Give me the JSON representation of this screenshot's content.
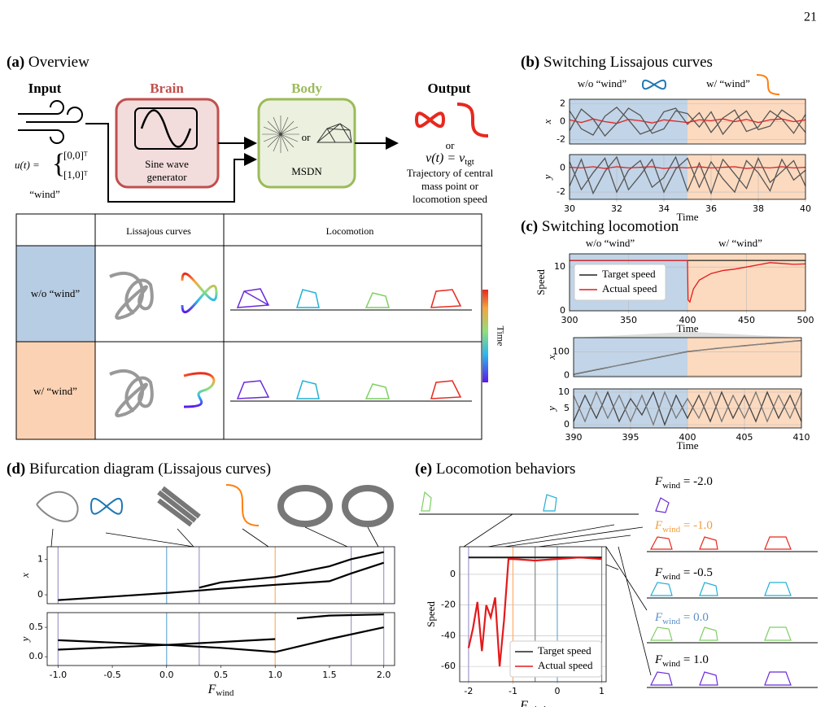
{
  "page_number": "21",
  "panels": {
    "a": {
      "label": "(a)",
      "title": "Overview",
      "input": "Input",
      "brain": "Brain",
      "brain_box": [
        "Sine wave",
        "generator"
      ],
      "body": "Body",
      "body_or": "or",
      "body_box": "MSDN",
      "output": "Output",
      "output_or": "or",
      "formula_v": "v(t) = v",
      "formula_v_sub": "tgt",
      "output_desc": [
        "Trajectory of central",
        "mass point or",
        "locomotion speed"
      ],
      "input_u": "u(t) =",
      "input_vec": [
        "[0,0]ᵀ",
        "[1,0]ᵀ"
      ],
      "wind_label": "“wind”",
      "table": {
        "headers": [
          "Lissajous curves",
          "Locomotion"
        ],
        "rows": [
          "w/o “wind”",
          "w/ “wind”"
        ],
        "colorbar": "Time"
      }
    },
    "b": {
      "label": "(b)",
      "title": "Switching Lissajous curves",
      "legend": [
        "w/o “wind”",
        "w/ “wind”"
      ]
    },
    "c": {
      "label": "(c)",
      "title": "Switching locomotion",
      "regions": [
        "w/o “wind”",
        "w/ “wind”"
      ]
    },
    "d": {
      "label": "(d)",
      "title": "Bifurcation diagram (Lissajous curves)"
    },
    "e": {
      "label": "(e)",
      "title": "Locomotion behaviors",
      "f_labels": [
        {
          "main": "F",
          "sub": "wind",
          "value": " = -2.0",
          "color": "#000000"
        },
        {
          "main": "F",
          "sub": "wind",
          "value": " = -1.0",
          "color": "#f39c3c"
        },
        {
          "main": "F",
          "sub": "wind",
          "value": " = -0.5",
          "color": "#000000"
        },
        {
          "main": "F",
          "sub": "wind",
          "value": " = 0.0",
          "color": "#5b8fc7"
        },
        {
          "main": "F",
          "sub": "wind",
          "value": " = 1.0",
          "color": "#000000"
        }
      ]
    }
  },
  "chart_data": [
    {
      "type": "line",
      "ylabel": "x",
      "xlim": [
        30,
        40
      ],
      "ylim": [
        -2.5,
        2.5
      ],
      "yticks": [
        -2,
        0,
        2
      ],
      "grid": true,
      "regions": [
        {
          "from": 30,
          "to": 35,
          "color": "#b7cde3"
        },
        {
          "from": 35,
          "to": 40,
          "color": "#fbd3b4"
        }
      ],
      "x": [
        30,
        30.5,
        31,
        31.5,
        32,
        32.5,
        33,
        33.5,
        34,
        34.5,
        35,
        35.5,
        36,
        36.5,
        37,
        37.5,
        38,
        38.5,
        39,
        39.5,
        40
      ],
      "series": [
        {
          "color": "#555555",
          "values": [
            1.2,
            -0.8,
            -1.5,
            0.6,
            1.6,
            0.2,
            -1.4,
            -0.9,
            1.1,
            1.5,
            -0.3,
            1.0,
            -1.2,
            0.4,
            1.3,
            -1.1,
            -0.6,
            1.2,
            0.3,
            -1.3,
            0.8
          ]
        },
        {
          "color": "#555555",
          "values": [
            -1.0,
            1.4,
            0.3,
            -1.6,
            -0.2,
            1.5,
            0.7,
            -1.3,
            -0.8,
            1.2,
            0.9,
            -0.6,
            1.1,
            -1.4,
            0.2,
            1.2,
            -0.9,
            -0.5,
            1.3,
            0.4,
            -1.2
          ]
        },
        {
          "color": "#d62728",
          "values": [
            0.2,
            -0.1,
            0.3,
            0.0,
            -0.2,
            0.25,
            0.1,
            -0.15,
            0.2,
            0.05,
            -0.1,
            0.2,
            0.1,
            0.3,
            0.0,
            0.25,
            -0.1,
            0.2,
            0.3,
            0.0,
            0.2
          ]
        }
      ]
    },
    {
      "type": "line",
      "ylabel": "y",
      "xlabel": "Time",
      "xlim": [
        30,
        40
      ],
      "ylim": [
        -2.6,
        1.1
      ],
      "xticks": [
        30,
        32,
        34,
        36,
        38,
        40
      ],
      "yticks": [
        -2,
        0
      ],
      "grid": true,
      "regions": [
        {
          "from": 30,
          "to": 35,
          "color": "#b7cde3"
        },
        {
          "from": 35,
          "to": 40,
          "color": "#fbd3b4"
        }
      ],
      "x": [
        30,
        30.5,
        31,
        31.5,
        32,
        32.5,
        33,
        33.5,
        34,
        34.5,
        35,
        35.5,
        36,
        36.5,
        37,
        37.5,
        38,
        38.5,
        39,
        39.5,
        40
      ],
      "series": [
        {
          "color": "#555555",
          "values": [
            0.5,
            -1.8,
            -0.4,
            0.8,
            -2.0,
            -0.2,
            0.6,
            -1.6,
            -0.8,
            0.9,
            -1.9,
            0.4,
            -2.1,
            0.7,
            -0.5,
            -1.7,
            0.8,
            -1.2,
            -0.3,
            0.6,
            -1.5
          ]
        },
        {
          "color": "#555555",
          "values": [
            -1.5,
            0.7,
            -2.1,
            -0.3,
            0.9,
            -1.8,
            -0.6,
            0.7,
            -2.0,
            -0.1,
            0.8,
            -1.6,
            0.5,
            -0.9,
            -2.0,
            0.6,
            -0.4,
            -1.9,
            0.7,
            -1.0,
            -0.2
          ]
        },
        {
          "color": "#d62728",
          "values": [
            0.05,
            0.0,
            0.1,
            -0.05,
            0.1,
            0.0,
            0.05,
            0.1,
            -0.05,
            0.05,
            0.0,
            0.1,
            0.0,
            0.05,
            0.1,
            -0.05,
            0.05,
            0.0,
            0.1,
            0.0,
            0.05
          ]
        }
      ]
    },
    {
      "type": "line",
      "ylabel": "Speed",
      "xlabel": "Time",
      "xlim": [
        300,
        500
      ],
      "ylim": [
        0,
        13
      ],
      "xticks": [
        300,
        350,
        400,
        450,
        500
      ],
      "yticks": [
        0,
        10
      ],
      "grid": true,
      "legend": "center left",
      "regions": [
        {
          "from": 300,
          "to": 400,
          "color": "#b7cde3"
        },
        {
          "from": 400,
          "to": 500,
          "color": "#fbd3b4"
        }
      ],
      "x": [
        300,
        400,
        400.5,
        402,
        405,
        410,
        420,
        430,
        440,
        450,
        460,
        470,
        480,
        490,
        500
      ],
      "series": [
        {
          "name": "Target speed",
          "color": "#222222",
          "values": [
            11.5,
            11.5,
            11.5,
            11.5,
            11.5,
            11.5,
            11.5,
            11.5,
            11.5,
            11.5,
            11.5,
            11.5,
            11.5,
            11.5,
            11.5
          ]
        },
        {
          "name": "Actual speed",
          "color": "#e31a1c",
          "values": [
            11.5,
            11.5,
            2.5,
            2.0,
            5,
            7,
            8.5,
            9.2,
            9.5,
            10,
            10.5,
            11,
            10.8,
            10.6,
            10.7
          ]
        }
      ]
    },
    {
      "type": "line",
      "ylabel": "x",
      "xlim": [
        390,
        410
      ],
      "ylim": [
        -5,
        160
      ],
      "yticks": [
        0,
        100
      ],
      "grid": true,
      "regions": [
        {
          "from": 390,
          "to": 400,
          "color": "#b7cde3"
        },
        {
          "from": 400,
          "to": 410,
          "color": "#fbd3b4"
        }
      ],
      "x": [
        390,
        392.5,
        395,
        397.5,
        400,
        402.5,
        405,
        407.5,
        410
      ],
      "series": [
        {
          "color": "#222222",
          "values": [
            5,
            29,
            53,
            77,
            101,
            114,
            126,
            137,
            148
          ]
        },
        {
          "color": "#888888",
          "values": [
            6,
            30,
            52,
            78,
            100,
            115,
            125,
            138,
            147
          ]
        }
      ]
    },
    {
      "type": "line",
      "ylabel": "y",
      "xlabel": "Time",
      "xlim": [
        390,
        410
      ],
      "ylim": [
        -1,
        11
      ],
      "xticks": [
        390,
        395,
        400,
        405,
        410
      ],
      "yticks": [
        0,
        5,
        10
      ],
      "grid": true,
      "regions": [
        {
          "from": 390,
          "to": 400,
          "color": "#b7cde3"
        },
        {
          "from": 400,
          "to": 410,
          "color": "#fbd3b4"
        }
      ],
      "x": [
        390,
        391,
        392,
        393,
        394,
        395,
        396,
        397,
        398,
        399,
        400,
        401,
        402,
        403,
        404,
        405,
        406,
        407,
        408,
        409,
        410
      ],
      "series": [
        {
          "color": "#444444",
          "values": [
            1,
            9,
            2,
            10,
            1,
            8,
            3,
            10,
            0,
            9,
            2,
            9,
            1,
            10,
            2,
            9,
            1,
            10,
            2,
            9,
            1
          ]
        },
        {
          "color": "#777777",
          "values": [
            9,
            1,
            10,
            2,
            9,
            1,
            9,
            0,
            10,
            2,
            8,
            2,
            10,
            1,
            9,
            2,
            10,
            1,
            9,
            2,
            10
          ]
        }
      ]
    },
    {
      "type": "line",
      "ylabel": "x",
      "xlim": [
        -1.1,
        2.1
      ],
      "ylim": [
        -0.25,
        1.35
      ],
      "yticks": [
        0,
        1
      ],
      "grid": false,
      "vlines": [
        {
          "value": -1,
          "color": "#9e9ac8"
        },
        {
          "value": 0,
          "color": "#6baed6"
        },
        {
          "value": 0.3,
          "color": "#9e9ac8"
        },
        {
          "value": 1,
          "color": "#fdae6b"
        },
        {
          "value": 1.7,
          "color": "#9e9ac8"
        },
        {
          "value": 2,
          "color": "#9e9ac8"
        }
      ],
      "series": [
        {
          "color": "#000000",
          "x": [
            -1,
            -0.5,
            0,
            0.3,
            0.5,
            1,
            1.5,
            1.7,
            2
          ],
          "values": [
            -0.15,
            -0.05,
            0.05,
            0.12,
            0.17,
            0.28,
            0.38,
            0.6,
            0.9
          ]
        },
        {
          "color": "#000000",
          "x": [
            0.3,
            0.5,
            1,
            1.5,
            1.7,
            2
          ],
          "values": [
            0.2,
            0.35,
            0.5,
            0.8,
            1.0,
            1.2
          ]
        }
      ]
    },
    {
      "type": "line",
      "ylabel": "y",
      "xlabel": "F",
      "xlabel_sub": "wind",
      "xlim": [
        -1.1,
        2.1
      ],
      "ylim": [
        -0.15,
        0.75
      ],
      "xticks": [
        {
          "value": -1,
          "label": "-1.0"
        },
        -0.5,
        {
          "value": 0,
          "label": "0.0"
        },
        0.5,
        {
          "value": 1,
          "label": "1.0"
        },
        1.5,
        {
          "value": 2,
          "label": "2.0"
        }
      ],
      "yticks": [
        {
          "value": 0,
          "label": "0.0"
        },
        0.5
      ],
      "grid": false,
      "vlines": [
        {
          "value": -1,
          "color": "#9e9ac8"
        },
        {
          "value": 0,
          "color": "#6baed6"
        },
        {
          "value": 0.3,
          "color": "#9e9ac8"
        },
        {
          "value": 1,
          "color": "#fdae6b"
        },
        {
          "value": 1.7,
          "color": "#9e9ac8"
        },
        {
          "value": 2,
          "color": "#9e9ac8"
        }
      ],
      "series": [
        {
          "color": "#000000",
          "x": [
            -1,
            0,
            0.5,
            1,
            1.5,
            2
          ],
          "values": [
            0.28,
            0.2,
            0.15,
            0.08,
            0.3,
            0.5
          ]
        },
        {
          "color": "#000000",
          "x": [
            -1,
            0,
            0.5,
            1
          ],
          "values": [
            0.12,
            0.2,
            0.25,
            0.3
          ]
        },
        {
          "color": "#000000",
          "x": [
            1.2,
            1.5,
            2
          ],
          "values": [
            0.65,
            0.7,
            0.72
          ]
        }
      ]
    },
    {
      "type": "line",
      "ylabel": "Speed",
      "xlabel": "F",
      "xlabel_sub": "wind",
      "xlim": [
        -2.2,
        1.1
      ],
      "ylim": [
        -70,
        18
      ],
      "xticks": [
        -2,
        -1,
        0,
        1
      ],
      "yticks": [
        -60,
        -40,
        -20,
        0
      ],
      "grid": true,
      "legend": "lower right",
      "vlines": [
        {
          "value": -2,
          "color": "#9e9ac8"
        },
        {
          "value": -1,
          "color": "#fdae6b"
        },
        {
          "value": -0.5,
          "color": "#888888"
        },
        {
          "value": 0,
          "color": "#6baed6"
        },
        {
          "value": 1,
          "color": "#888888"
        }
      ],
      "x": [
        -2,
        -1.9,
        -1.8,
        -1.7,
        -1.6,
        -1.5,
        -1.4,
        -1.3,
        -1.2,
        -1.1,
        -1,
        -0.5,
        0,
        0.5,
        1
      ],
      "series": [
        {
          "name": "Target speed",
          "color": "#222222",
          "values": [
            11,
            11,
            11,
            11,
            11,
            11,
            11,
            11,
            11,
            11,
            11,
            11,
            11,
            11,
            11
          ]
        },
        {
          "name": "Actual speed",
          "color": "#e31a1c",
          "values": [
            -48,
            -35,
            -18,
            -50,
            -20,
            -28,
            -15,
            -60,
            -30,
            10,
            10,
            9,
            10,
            11,
            10
          ]
        }
      ]
    }
  ]
}
